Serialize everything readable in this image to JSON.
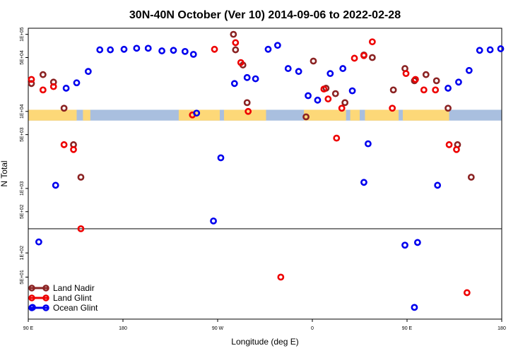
{
  "chart_data": {
    "type": "scatter",
    "title": "30N-40N October (Ver 10)   2014-09-06 to 2022-02-28",
    "xlabel": "Longitude (deg E)",
    "ylabel": "N Total",
    "x_ticks": [
      {
        "value": -90,
        "label": "90 E"
      },
      {
        "value": 0,
        "label": "180"
      },
      {
        "value": 90,
        "label": "90 W"
      },
      {
        "value": 180,
        "label": "0"
      },
      {
        "value": 270,
        "label": "90 E"
      },
      {
        "value": 360,
        "label": "180"
      }
    ],
    "xlim": [
      -90,
      360
    ],
    "y_ticks_upper": [
      {
        "value": 100000,
        "label": "1E+05"
      },
      {
        "value": 50000,
        "label": "5E+04"
      },
      {
        "value": 10000,
        "label": "1E+04"
      },
      {
        "value": 5000,
        "label": "5E+03"
      },
      {
        "value": 1000,
        "label": "1E+03"
      },
      {
        "value": 500,
        "label": "5E+02"
      }
    ],
    "y_ticks_lower": [
      {
        "value": 100,
        "label": "1E+02"
      },
      {
        "value": 50,
        "label": "5E+01"
      }
    ],
    "ylim_upper": [
      300,
      120000
    ],
    "ylim_lower": [
      15,
      200
    ],
    "scale": "log",
    "legend_position": "bottom-left",
    "map_strip": {
      "ocean_color": "#a9bfdf",
      "land_color": "#fdd878"
    },
    "series": [
      {
        "name": "Land Nadir",
        "color": "#8b2323",
        "points": [
          {
            "x": -87,
            "y": 23000
          },
          {
            "x": -76,
            "y": 30000
          },
          {
            "x": -66,
            "y": 24000
          },
          {
            "x": -56,
            "y": 11000
          },
          {
            "x": -47,
            "y": 3700
          },
          {
            "x": -40,
            "y": 1400
          },
          {
            "x": 105,
            "y": 100000
          },
          {
            "x": 107,
            "y": 63000
          },
          {
            "x": 114,
            "y": 40000
          },
          {
            "x": 118,
            "y": 13000
          },
          {
            "x": 174,
            "y": 8500
          },
          {
            "x": 181,
            "y": 45000
          },
          {
            "x": 193,
            "y": 20000
          },
          {
            "x": 202,
            "y": 17000
          },
          {
            "x": 211,
            "y": 13000
          },
          {
            "x": 229,
            "y": 54000
          },
          {
            "x": 237,
            "y": 50000
          },
          {
            "x": 257,
            "y": 19000
          },
          {
            "x": 268,
            "y": 36000
          },
          {
            "x": 277,
            "y": 25000
          },
          {
            "x": 288,
            "y": 30000
          },
          {
            "x": 298,
            "y": 25000
          },
          {
            "x": 309,
            "y": 11000
          },
          {
            "x": 318,
            "y": 3700
          },
          {
            "x": 331,
            "y": 1400
          }
        ]
      },
      {
        "name": "Land Glint",
        "color": "#ee0000",
        "points": [
          {
            "x": -87,
            "y": 26000
          },
          {
            "x": -76,
            "y": 19000
          },
          {
            "x": -66,
            "y": 21000
          },
          {
            "x": -56,
            "y": 3700
          },
          {
            "x": -47,
            "y": 3200
          },
          {
            "x": -40,
            "y": 300
          },
          {
            "x": 66,
            "y": 9000
          },
          {
            "x": 87,
            "y": 64000
          },
          {
            "x": 107,
            "y": 78000
          },
          {
            "x": 112,
            "y": 43000
          },
          {
            "x": 119,
            "y": 10000
          },
          {
            "x": 150,
            "y": 50
          },
          {
            "x": 191,
            "y": 19500
          },
          {
            "x": 195,
            "y": 14500
          },
          {
            "x": 203,
            "y": 4500
          },
          {
            "x": 208,
            "y": 11000
          },
          {
            "x": 220,
            "y": 49000
          },
          {
            "x": 229,
            "y": 53000
          },
          {
            "x": 237,
            "y": 80000
          },
          {
            "x": 256,
            "y": 11000
          },
          {
            "x": 269,
            "y": 31000
          },
          {
            "x": 278,
            "y": 26000
          },
          {
            "x": 286,
            "y": 19000
          },
          {
            "x": 297,
            "y": 19000
          },
          {
            "x": 310,
            "y": 3700
          },
          {
            "x": 317,
            "y": 3200
          },
          {
            "x": 327,
            "y": 32
          }
        ]
      },
      {
        "name": "Ocean Glint",
        "color": "#0000ee",
        "points": [
          {
            "x": -86,
            "y": 21
          },
          {
            "x": -80,
            "y": 137
          },
          {
            "x": -64,
            "y": 1100
          },
          {
            "x": -54,
            "y": 20000
          },
          {
            "x": -44,
            "y": 23500
          },
          {
            "x": -33,
            "y": 33000
          },
          {
            "x": -22,
            "y": 63000
          },
          {
            "x": -12,
            "y": 63000
          },
          {
            "x": 1,
            "y": 64000
          },
          {
            "x": 13,
            "y": 66000
          },
          {
            "x": 24,
            "y": 66000
          },
          {
            "x": 37,
            "y": 61000
          },
          {
            "x": 48,
            "y": 62000
          },
          {
            "x": 59,
            "y": 60000
          },
          {
            "x": 67,
            "y": 55000
          },
          {
            "x": 70,
            "y": 9500
          },
          {
            "x": 86,
            "y": 250
          },
          {
            "x": 93,
            "y": 2500
          },
          {
            "x": 106,
            "y": 23000
          },
          {
            "x": 118,
            "y": 27500
          },
          {
            "x": 126,
            "y": 26500
          },
          {
            "x": 138,
            "y": 64000
          },
          {
            "x": 147,
            "y": 72000
          },
          {
            "x": 157,
            "y": 36000
          },
          {
            "x": 167,
            "y": 33000
          },
          {
            "x": 176,
            "y": 16000
          },
          {
            "x": 185,
            "y": 14000
          },
          {
            "x": 197,
            "y": 31000
          },
          {
            "x": 209,
            "y": 36000
          },
          {
            "x": 218,
            "y": 18500
          },
          {
            "x": 229,
            "y": 1200
          },
          {
            "x": 233,
            "y": 3800
          },
          {
            "x": 268,
            "y": 125
          },
          {
            "x": 277,
            "y": 21
          },
          {
            "x": 280,
            "y": 135
          },
          {
            "x": 299,
            "y": 1100
          },
          {
            "x": 309,
            "y": 20000
          },
          {
            "x": 319,
            "y": 24000
          },
          {
            "x": 329,
            "y": 34000
          },
          {
            "x": 339,
            "y": 62000
          },
          {
            "x": 349,
            "y": 63000
          },
          {
            "x": 359,
            "y": 65000
          }
        ]
      }
    ]
  }
}
